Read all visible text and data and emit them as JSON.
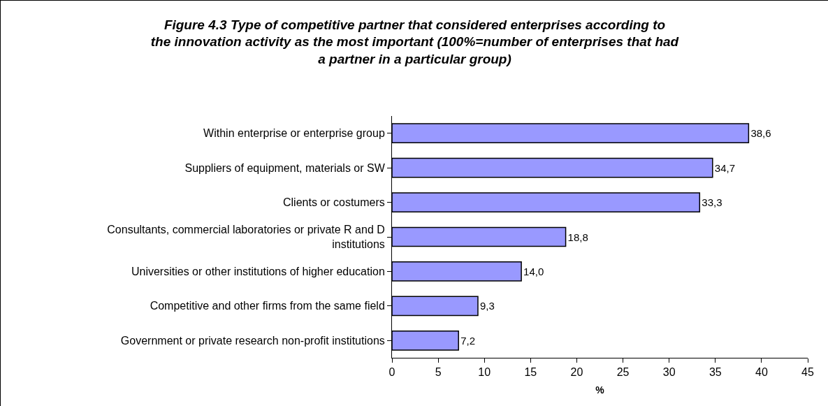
{
  "chart_data": {
    "type": "bar",
    "orientation": "horizontal",
    "title": "Figure 4.3 Type of competitive partner that considered enterprises according to the innovation activity as the most important (100%=number of enterprises that had a partner in a particular group)",
    "xlabel": "%",
    "categories": [
      "Within enterprise or enterprise group",
      "Suppliers of equipment, materials or SW",
      "Clients or costumers",
      "Consultants, commercial laboratories or private R and D institutions",
      "Universities or other institutions of higher education",
      "Competitive and other firms from the same field",
      "Government or private research non-profit institutions"
    ],
    "values": [
      38.6,
      34.7,
      33.3,
      18.8,
      14.0,
      9.3,
      7.2
    ],
    "value_labels": [
      "38,6",
      "34,7",
      "33,3",
      "18,8",
      "14,0",
      "9,3",
      "7,2"
    ],
    "color": "#9999ff",
    "xlim": [
      0,
      45
    ],
    "xticks": [
      0,
      5,
      10,
      15,
      20,
      25,
      30,
      35,
      40,
      45
    ],
    "grid": false,
    "legend": false
  }
}
